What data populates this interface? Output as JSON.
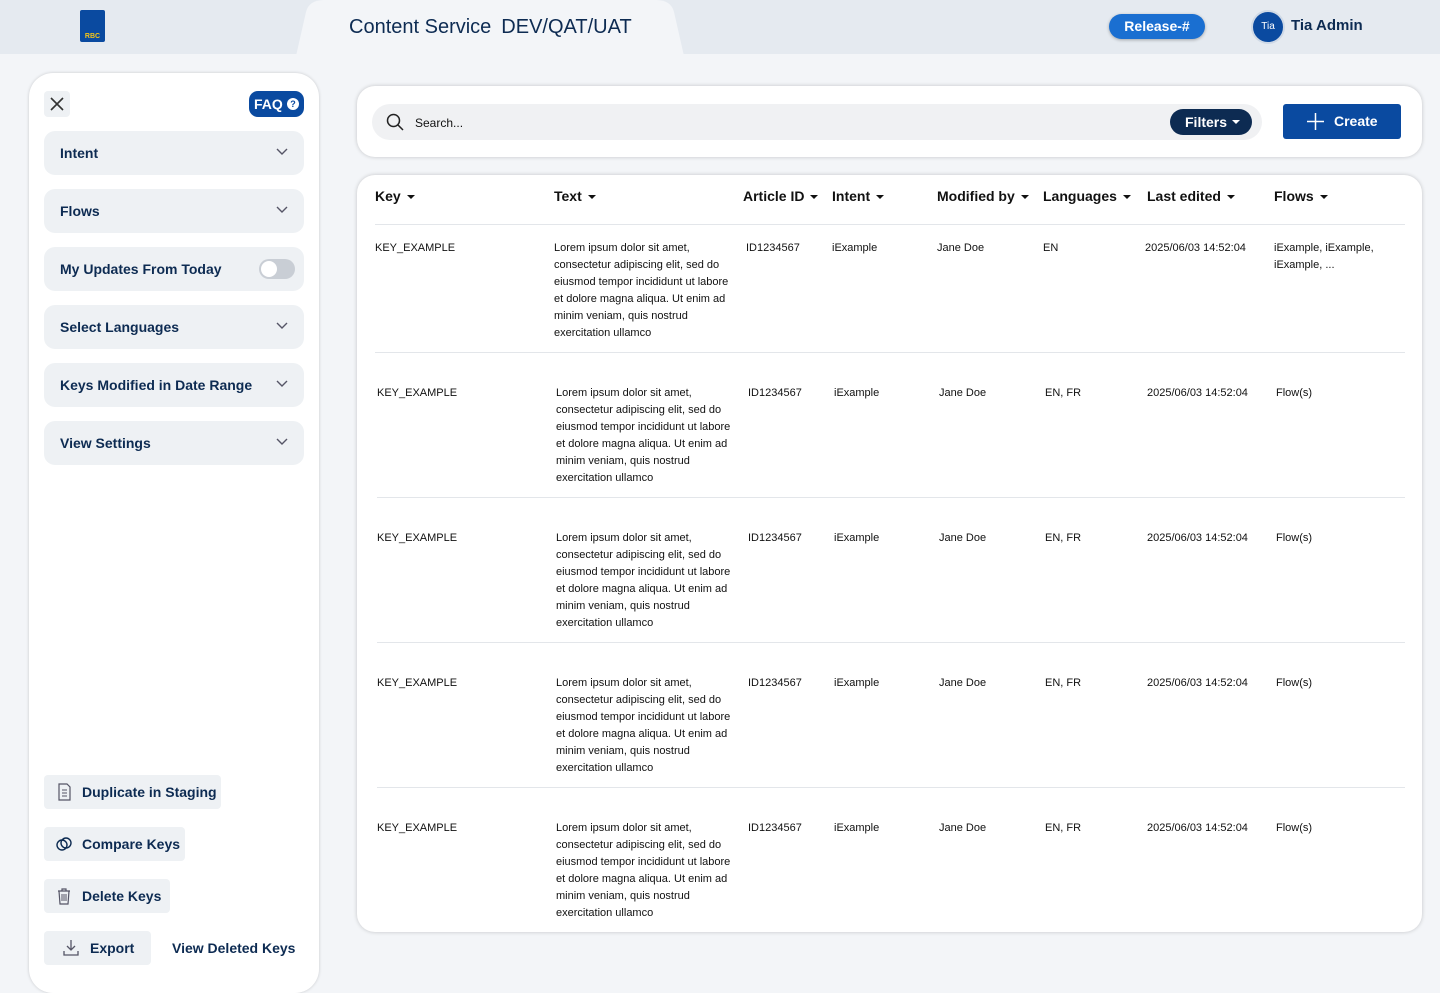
{
  "header": {
    "logo": "RBC",
    "title": "Content Service",
    "environment": "DEV/QAT/UAT",
    "release": "Release-#",
    "avatar": "Tia",
    "user": "Tia Admin"
  },
  "sidebar": {
    "faq": "FAQ",
    "faq_icon": "?",
    "filters": [
      "Intent",
      "Flows",
      "My Updates From Today",
      "Select Languages",
      "Keys Modified in Date Range",
      "View Settings"
    ],
    "actions": [
      "Duplicate in Staging",
      "Compare Keys",
      "Delete Keys",
      "Export"
    ],
    "view_deleted": "View Deleted Keys"
  },
  "toolbar": {
    "search_placeholder": "Search...",
    "filters": "Filters",
    "create": "Create"
  },
  "table": {
    "columns": [
      "Key",
      "Text",
      "Article ID",
      "Intent",
      "Modified by",
      "Languages",
      "Last edited",
      "Flows"
    ],
    "rows": [
      [
        "KEY_EXAMPLE",
        "Lorem ipsum dolor sit amet, consectetur adipiscing elit, sed do eiusmod tempor incididunt ut labore et dolore magna aliqua. Ut enim ad minim veniam, quis nostrud exercitation ullamco",
        "ID1234567",
        "iExample",
        "Jane Doe",
        "EN",
        "2025/06/03 14:52:04",
        "iExample, iExample, iExample, ..."
      ],
      [
        "KEY_EXAMPLE",
        "Lorem ipsum dolor sit amet, consectetur adipiscing elit, sed do eiusmod tempor incididunt ut labore et dolore magna aliqua. Ut enim ad minim veniam, quis nostrud exercitation ullamco",
        "ID1234567",
        "iExample",
        "Jane Doe",
        "EN, FR",
        "2025/06/03 14:52:04",
        "Flow(s)"
      ],
      [
        "KEY_EXAMPLE",
        "Lorem ipsum dolor sit amet, consectetur adipiscing elit, sed do eiusmod tempor incididunt ut labore et dolore magna aliqua. Ut enim ad minim veniam, quis nostrud exercitation ullamco",
        "ID1234567",
        "iExample",
        "Jane Doe",
        "EN, FR",
        "2025/06/03 14:52:04",
        "Flow(s)"
      ],
      [
        "KEY_EXAMPLE",
        "Lorem ipsum dolor sit amet, consectetur adipiscing elit, sed do eiusmod tempor incididunt ut labore et dolore magna aliqua. Ut enim ad minim veniam, quis nostrud exercitation ullamco",
        "ID1234567",
        "iExample",
        "Jane Doe",
        "EN, FR",
        "2025/06/03 14:52:04",
        "Flow(s)"
      ],
      [
        "KEY_EXAMPLE",
        "Lorem ipsum dolor sit amet, consectetur adipiscing elit, sed do eiusmod tempor incididunt ut labore et dolore magna aliqua. Ut enim ad minim veniam, quis nostrud exercitation ullamco",
        "ID1234567",
        "iExample",
        "Jane Doe",
        "EN, FR",
        "2025/06/03 14:52:04",
        "Flow(s)"
      ]
    ]
  }
}
